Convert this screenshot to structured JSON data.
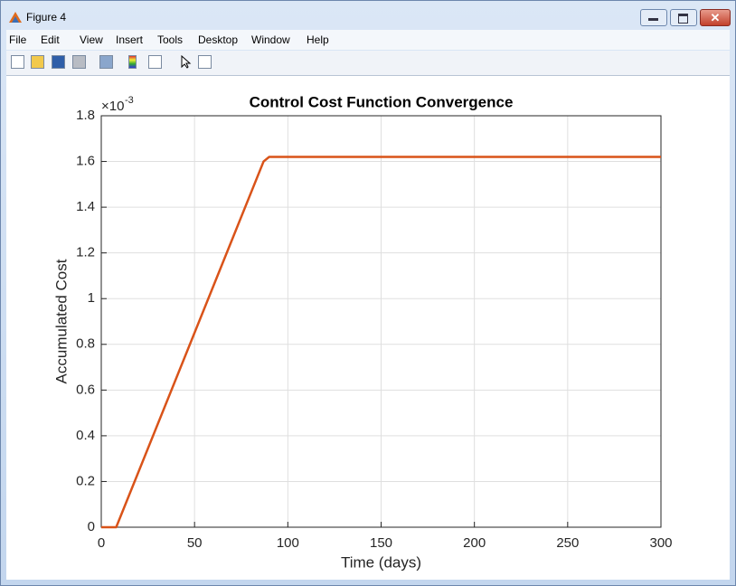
{
  "window": {
    "title": "Figure 4"
  },
  "menu": [
    "File",
    "Edit",
    "View",
    "Insert",
    "Tools",
    "Desktop",
    "Window",
    "Help"
  ],
  "chart_data": {
    "type": "line",
    "title": "Control Cost Function Convergence",
    "x_label": "Time (days)",
    "y_label": "Accumulated Cost",
    "y_multiplier": "×10",
    "y_exponent": "-3",
    "x": [
      0,
      8,
      87,
      90,
      300
    ],
    "series": [
      {
        "color": "#d95319",
        "values": [
          0,
          0,
          1.6,
          1.62,
          1.62
        ]
      }
    ],
    "xlim": [
      0,
      300
    ],
    "ylim": [
      0,
      1.8
    ],
    "xticks": [
      0,
      50,
      100,
      150,
      200,
      250,
      300
    ],
    "yticks": [
      0,
      0.2,
      0.4,
      0.6,
      0.8,
      1,
      1.2,
      1.4,
      1.6,
      1.8
    ],
    "grid": true
  }
}
